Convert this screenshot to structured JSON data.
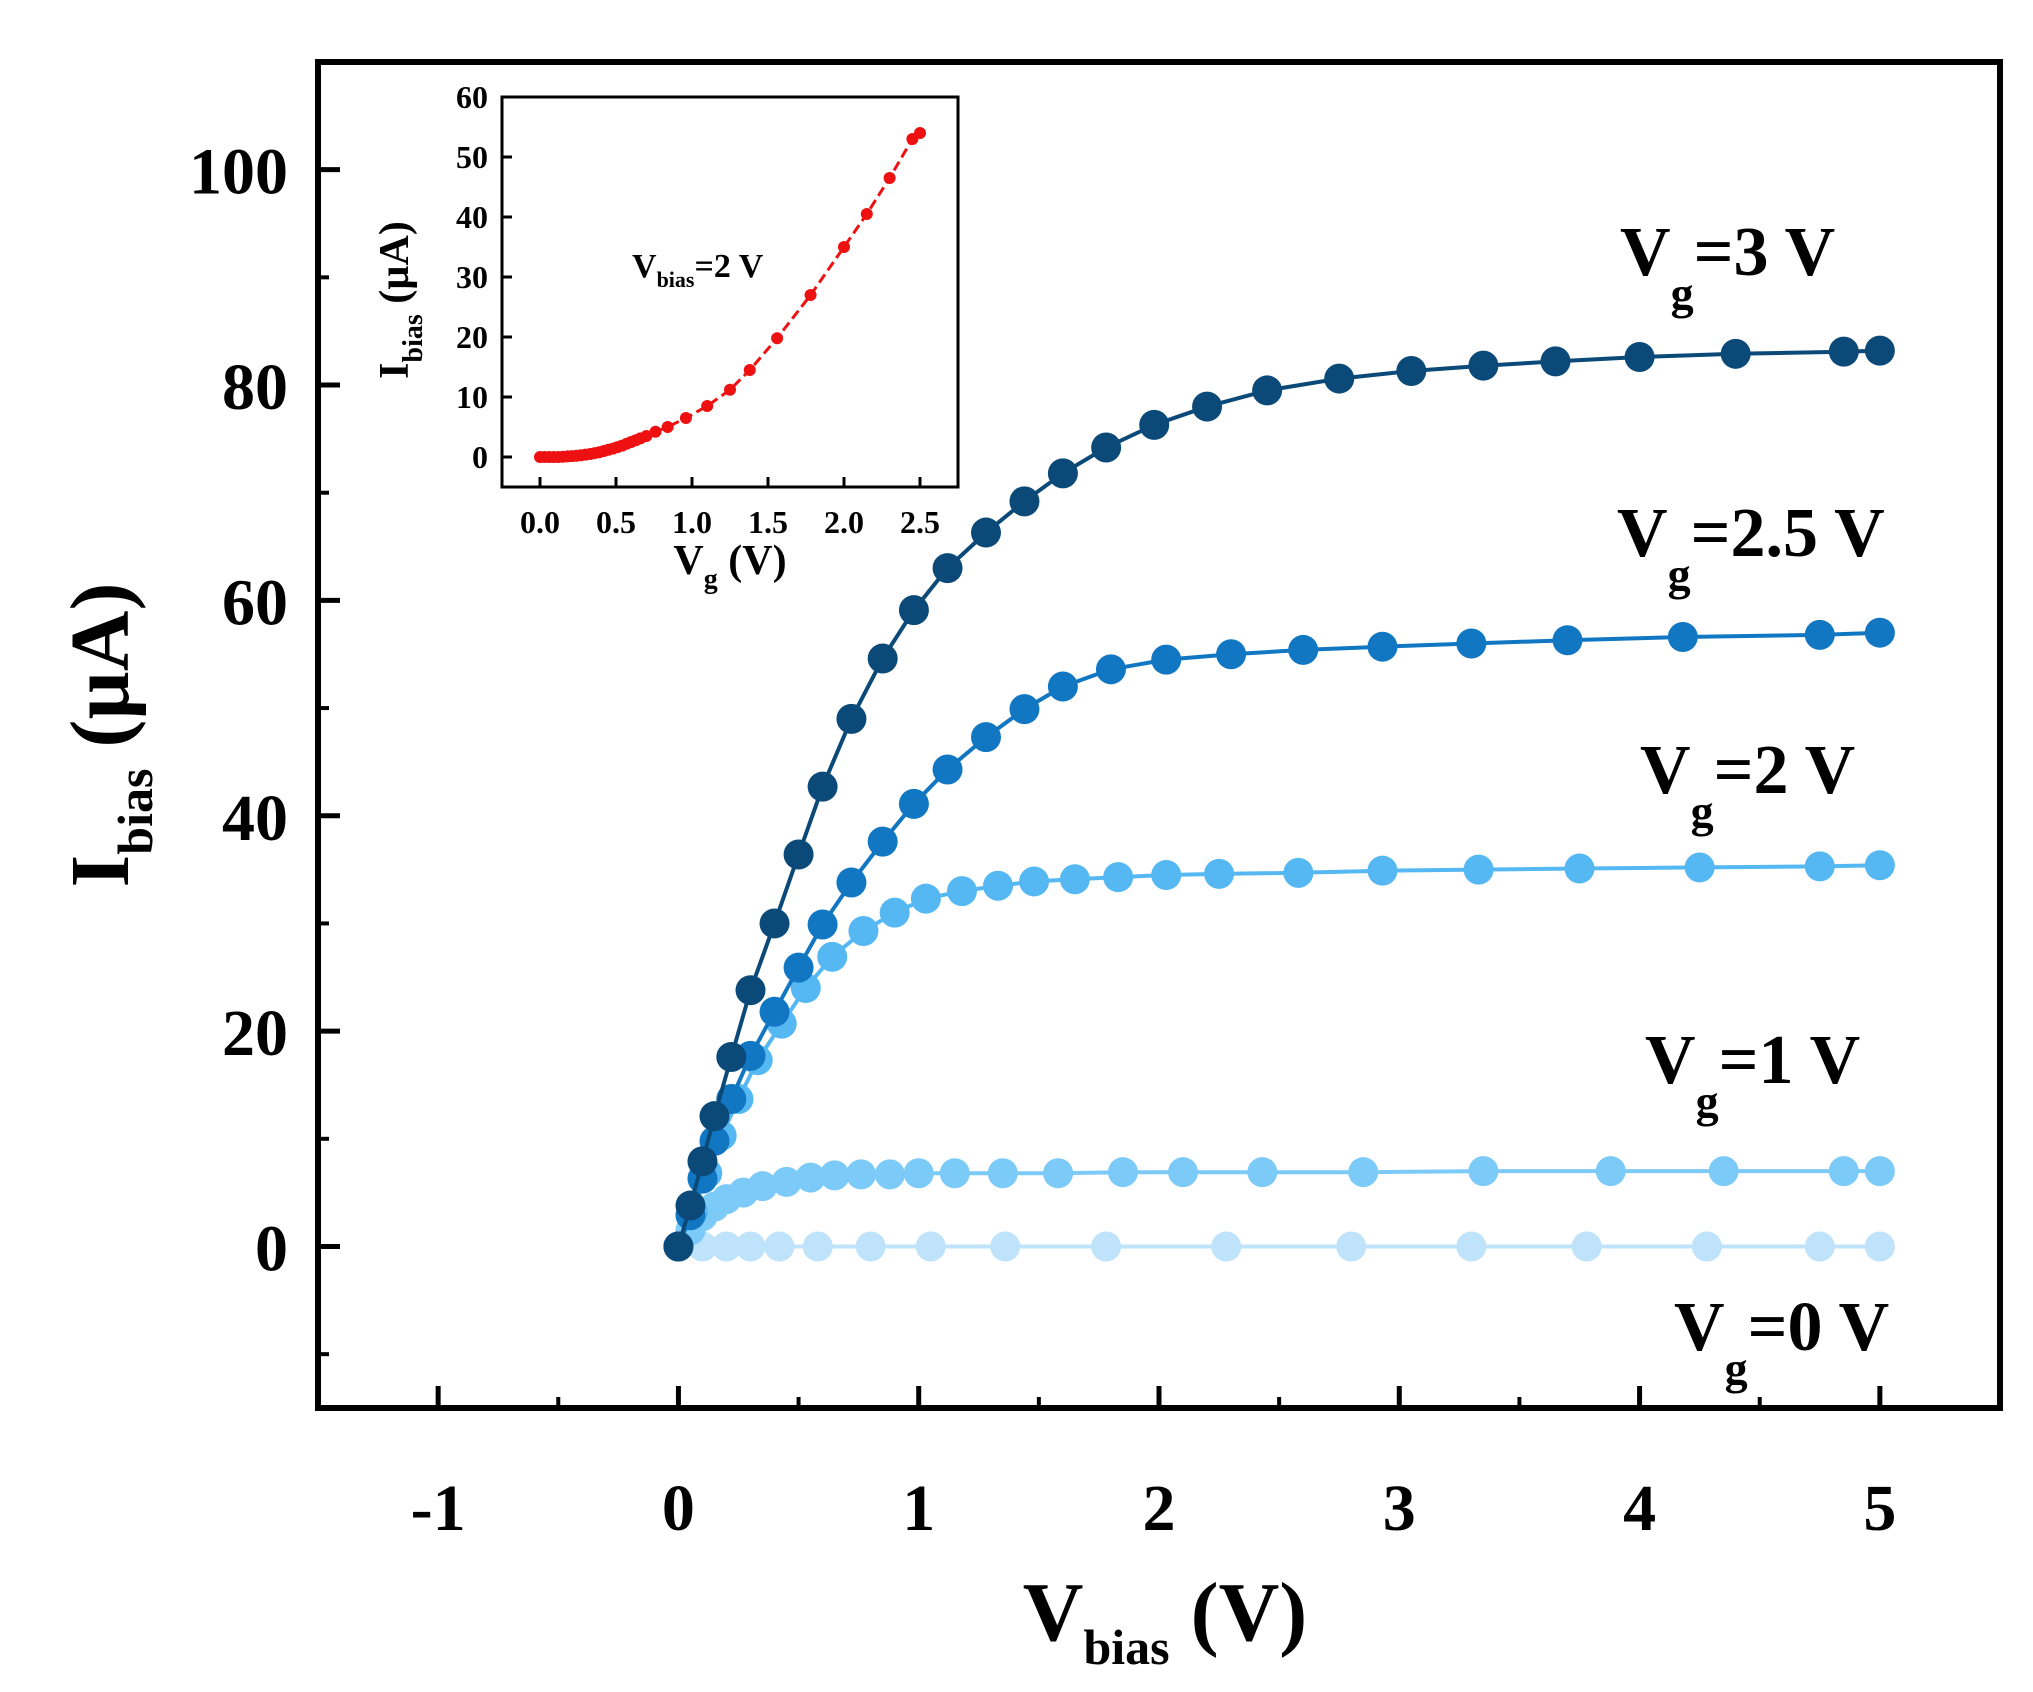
{
  "chart_data": [
    {
      "type": "line",
      "role": "main",
      "xlabel": "V",
      "xlabel_sub": "bias",
      "xlabel_unit": " (V)",
      "ylabel": "I",
      "ylabel_sub": "bias",
      "ylabel_unit": " (µA)",
      "xlim": [
        -1.5,
        5.5
      ],
      "ylim": [
        -15,
        110
      ],
      "xticks": [
        -1,
        0,
        1,
        2,
        3,
        4,
        5
      ],
      "xtick_labels": [
        "-1",
        "0",
        "1",
        "2",
        "3",
        "4",
        "5"
      ],
      "yticks": [
        0,
        20,
        40,
        60,
        80,
        100
      ],
      "ytick_labels": [
        "0",
        "20",
        "40",
        "60",
        "80",
        "100"
      ],
      "series": [
        {
          "name": "Vg=0 V",
          "color": "#bfe3fa",
          "label_main": "V",
          "label_sub": "g",
          "label_rest": "=0 V",
          "x": [
            0,
            0.1,
            0.2,
            0.3,
            0.42,
            0.58,
            0.8,
            1.05,
            1.36,
            1.78,
            2.28,
            2.8,
            3.3,
            3.78,
            4.28,
            4.75,
            5.0
          ],
          "y": [
            0,
            0,
            0,
            0,
            0,
            0,
            0,
            0,
            0,
            0,
            0,
            0,
            0,
            0,
            0,
            0,
            0
          ]
        },
        {
          "name": "Vg=1 V",
          "color": "#7ccaf8",
          "label_main": "V",
          "label_sub": "g",
          "label_rest": "=1 V",
          "x": [
            0,
            0.05,
            0.1,
            0.15,
            0.2,
            0.27,
            0.35,
            0.45,
            0.55,
            0.65,
            0.76,
            0.88,
            1.0,
            1.15,
            1.35,
            1.58,
            1.85,
            2.1,
            2.43,
            2.85,
            3.35,
            3.88,
            4.35,
            4.85,
            5.0
          ],
          "y": [
            0,
            1.5,
            2.8,
            3.7,
            4.4,
            5.0,
            5.6,
            6.0,
            6.4,
            6.6,
            6.7,
            6.7,
            6.8,
            6.8,
            6.8,
            6.8,
            6.9,
            6.9,
            6.9,
            6.9,
            7.0,
            7.0,
            7.0,
            7.0,
            7.0
          ]
        },
        {
          "name": "Vg=2 V",
          "color": "#55b8f2",
          "label_main": "V",
          "label_sub": "g",
          "label_rest": "=2 V",
          "x": [
            0,
            0.06,
            0.12,
            0.18,
            0.25,
            0.33,
            0.43,
            0.53,
            0.64,
            0.77,
            0.9,
            1.03,
            1.18,
            1.33,
            1.48,
            1.65,
            1.83,
            2.03,
            2.25,
            2.58,
            2.93,
            3.33,
            3.75,
            4.25,
            4.75,
            5.0
          ],
          "y": [
            0,
            3.2,
            6.8,
            10.3,
            13.7,
            17.3,
            20.7,
            24.0,
            26.9,
            29.3,
            31.0,
            32.3,
            33.0,
            33.5,
            33.9,
            34.1,
            34.3,
            34.5,
            34.6,
            34.7,
            34.9,
            35.0,
            35.1,
            35.2,
            35.3,
            35.4
          ]
        },
        {
          "name": "Vg=2.5 V",
          "color": "#1277c2",
          "label_main": "V",
          "label_sub": "g",
          "label_rest": "=2.5 V",
          "x": [
            0,
            0.05,
            0.1,
            0.15,
            0.22,
            0.3,
            0.4,
            0.5,
            0.6,
            0.72,
            0.85,
            0.98,
            1.12,
            1.28,
            1.44,
            1.6,
            1.8,
            2.03,
            2.3,
            2.6,
            2.93,
            3.3,
            3.7,
            4.18,
            4.75,
            5.0
          ],
          "y": [
            0,
            2.9,
            6.3,
            9.8,
            13.7,
            17.7,
            21.8,
            25.9,
            29.9,
            33.8,
            37.6,
            41.1,
            44.3,
            47.3,
            49.9,
            52.0,
            53.6,
            54.5,
            55.0,
            55.4,
            55.7,
            56.0,
            56.3,
            56.6,
            56.8,
            57.0
          ]
        },
        {
          "name": "Vg=3 V",
          "color": "#0b4a78",
          "label_main": "V",
          "label_sub": "g",
          "label_rest": "=3 V",
          "x": [
            0,
            0.05,
            0.1,
            0.15,
            0.22,
            0.3,
            0.4,
            0.5,
            0.6,
            0.72,
            0.85,
            0.98,
            1.12,
            1.28,
            1.44,
            1.6,
            1.78,
            1.98,
            2.2,
            2.45,
            2.75,
            3.05,
            3.35,
            3.65,
            4.0,
            4.4,
            4.85,
            5.0
          ],
          "y": [
            0,
            3.8,
            7.9,
            12.1,
            17.6,
            23.8,
            30.0,
            36.4,
            42.7,
            49.0,
            54.6,
            59.1,
            63.0,
            66.3,
            69.2,
            71.8,
            74.2,
            76.3,
            78.0,
            79.5,
            80.6,
            81.3,
            81.8,
            82.2,
            82.6,
            82.9,
            83.1,
            83.2
          ]
        }
      ]
    },
    {
      "type": "scatter",
      "role": "inset",
      "xlabel": "V",
      "xlabel_sub": "g",
      "xlabel_unit": " (V)",
      "ylabel": "I",
      "ylabel_sub": "bias",
      "ylabel_unit": " (µA)",
      "annotation_main": "V",
      "annotation_sub": "bias",
      "annotation_rest": "=2 V",
      "xlim": [
        -0.25,
        2.75
      ],
      "ylim": [
        -5,
        60
      ],
      "xticks": [
        0.0,
        0.5,
        1.0,
        1.5,
        2.0,
        2.5
      ],
      "xtick_labels": [
        "0.0",
        "0.5",
        "1.0",
        "1.5",
        "2.0",
        "2.5"
      ],
      "yticks": [
        0,
        10,
        20,
        30,
        40,
        50,
        60
      ],
      "ytick_labels": [
        "0",
        "10",
        "20",
        "30",
        "40",
        "50",
        "60"
      ],
      "series": [
        {
          "name": "Vbias=2 V",
          "color": "#ee1111",
          "x": [
            0.0,
            0.03,
            0.06,
            0.09,
            0.12,
            0.15,
            0.18,
            0.21,
            0.24,
            0.27,
            0.3,
            0.33,
            0.36,
            0.39,
            0.42,
            0.45,
            0.48,
            0.51,
            0.54,
            0.57,
            0.6,
            0.63,
            0.66,
            0.7,
            0.76,
            0.84,
            0.96,
            1.1,
            1.25,
            1.38,
            1.56,
            1.78,
            2.0,
            2.15,
            2.3,
            2.45,
            2.5
          ],
          "y": [
            0.0,
            0.0,
            0.0,
            0.0,
            0.0,
            0.05,
            0.1,
            0.15,
            0.2,
            0.3,
            0.4,
            0.5,
            0.65,
            0.8,
            1.0,
            1.2,
            1.4,
            1.65,
            1.9,
            2.2,
            2.5,
            2.8,
            3.1,
            3.5,
            4.2,
            5.0,
            6.5,
            8.5,
            11.2,
            14.5,
            19.8,
            27.0,
            35.0,
            40.5,
            46.5,
            53.0,
            54.0
          ]
        }
      ]
    }
  ]
}
